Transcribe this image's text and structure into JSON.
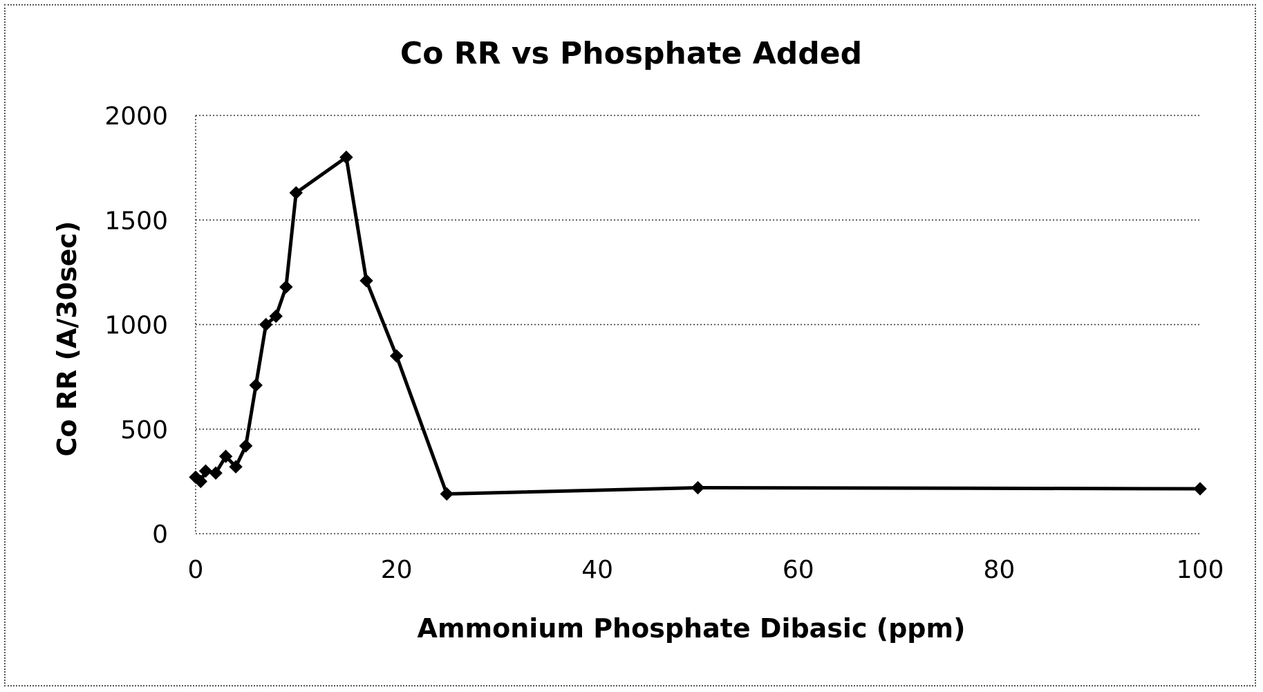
{
  "chart_data": {
    "type": "line",
    "title": "Co RR vs Phosphate Added",
    "xlabel": "Ammonium Phosphate Dibasic (ppm)",
    "ylabel": "Co RR (A/30sec)",
    "xlim": [
      0,
      100
    ],
    "ylim": [
      0,
      2000
    ],
    "xticks": [
      0,
      20,
      40,
      60,
      80,
      100
    ],
    "yticks": [
      0,
      500,
      1000,
      1500,
      2000
    ],
    "grid": "horizontal-dotted",
    "legend": "none",
    "series": [
      {
        "color": "#000000",
        "marker": "diamond",
        "x": [
          0,
          0.5,
          1,
          2,
          3,
          4,
          5,
          6,
          7,
          8,
          9,
          10,
          15,
          17,
          20,
          25,
          50,
          100
        ],
        "y": [
          270,
          250,
          300,
          290,
          370,
          320,
          420,
          710,
          1000,
          1040,
          1180,
          1630,
          1800,
          1210,
          850,
          190,
          220,
          215
        ]
      }
    ]
  }
}
